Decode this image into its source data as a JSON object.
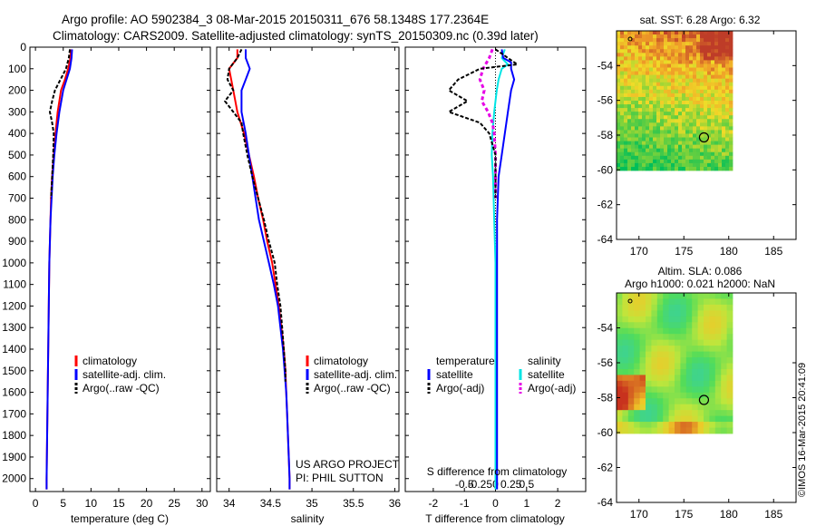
{
  "header": {
    "line1": "Argo profile: AO 5902384_3 08-Mar-2015 20150311_676 58.1348S 177.2364E",
    "line2": "Climatology: CARS2009. Satellite-adjusted climatology: synTS_20150309.nc (0.39d later)"
  },
  "colors": {
    "climatology": "#ff0000",
    "satellite": "#0000ff",
    "argo": "#000000",
    "salinity_satellite": "#00e5e5",
    "salinity_argo": "#e600e6"
  },
  "chart_data": [
    {
      "id": "temperature",
      "type": "line",
      "xlabel": "temperature (deg C)",
      "ylabel": "",
      "xlim": [
        -1,
        31.5
      ],
      "ylim": [
        2060,
        0
      ],
      "xticks": [
        0,
        5,
        10,
        15,
        20,
        25,
        30
      ],
      "yticks": [
        0,
        100,
        200,
        300,
        400,
        500,
        600,
        700,
        800,
        900,
        1000,
        1100,
        1200,
        1300,
        1400,
        1500,
        1600,
        1700,
        1800,
        1900,
        2000
      ],
      "legend": [
        "climatology",
        "satellite-adj. clim.",
        "Argo(..raw -QC)"
      ],
      "series": [
        {
          "name": "climatology",
          "depth": [
            10,
            50,
            100,
            150,
            200,
            300,
            400,
            500,
            600,
            700,
            800,
            1000,
            1200,
            1400,
            1600,
            1800,
            2000,
            2050
          ],
          "values": [
            6.4,
            6.3,
            5.9,
            5.3,
            4.6,
            4.0,
            3.6,
            3.3,
            3.0,
            2.8,
            2.7,
            2.5,
            2.4,
            2.3,
            2.2,
            2.1,
            2.0,
            2.0
          ]
        },
        {
          "name": "satellite-adj. clim.",
          "depth": [
            10,
            50,
            100,
            150,
            200,
            300,
            400,
            500,
            600,
            700,
            800,
            1000,
            1200,
            1400,
            1600,
            1800,
            2000,
            2050
          ],
          "values": [
            6.6,
            6.5,
            6.2,
            5.6,
            5.0,
            4.3,
            3.8,
            3.4,
            3.1,
            2.9,
            2.7,
            2.5,
            2.4,
            2.3,
            2.2,
            2.1,
            2.0,
            2.0
          ]
        },
        {
          "name": "Argo(..raw -QC)",
          "depth": [
            10,
            50,
            100,
            150,
            200,
            250,
            300,
            350,
            400,
            500,
            600,
            700
          ],
          "values": [
            6.2,
            6.0,
            5.5,
            4.5,
            3.5,
            3.0,
            2.6,
            3.0,
            3.3,
            3.2,
            3.0,
            2.8
          ]
        }
      ]
    },
    {
      "id": "salinity",
      "type": "line",
      "xlabel": "salinity",
      "ylabel": "",
      "xlim": [
        33.85,
        36.05
      ],
      "ylim": [
        2060,
        0
      ],
      "xticks": [
        34,
        34.5,
        35,
        35.5,
        36
      ],
      "legend": [
        "climatology",
        "satellite-adj. clim.",
        "Argo(..raw -QC)"
      ],
      "annotation": [
        "US ARGO PROJECT",
        "PI: PHIL SUTTON"
      ],
      "series": [
        {
          "name": "climatology",
          "depth": [
            10,
            50,
            100,
            200,
            300,
            400,
            500,
            600,
            700,
            800,
            900,
            1000,
            1100,
            1200,
            1300,
            1400,
            1500,
            1600,
            1700,
            1800,
            1900,
            2000,
            2050
          ],
          "values": [
            34.1,
            34.1,
            34.0,
            34.05,
            34.1,
            34.18,
            34.24,
            34.3,
            34.35,
            34.41,
            34.46,
            34.52,
            34.56,
            34.6,
            34.63,
            34.66,
            34.68,
            34.69,
            34.7,
            34.71,
            34.72,
            34.73,
            34.73
          ]
        },
        {
          "name": "satellite-adj. clim.",
          "depth": [
            10,
            50,
            100,
            150,
            200,
            300,
            400,
            500,
            600,
            700,
            800,
            900,
            1000,
            1100,
            1200,
            1300,
            1400,
            1500,
            1600,
            1700,
            1800,
            1900,
            2000,
            2050
          ],
          "values": [
            34.2,
            34.2,
            34.25,
            34.2,
            34.15,
            34.15,
            34.2,
            34.24,
            34.28,
            34.32,
            34.36,
            34.42,
            34.48,
            34.54,
            34.59,
            34.62,
            34.65,
            34.67,
            34.69,
            34.7,
            34.71,
            34.72,
            34.73,
            34.73
          ]
        },
        {
          "name": "Argo(..raw -QC)",
          "depth": [
            10,
            50,
            100,
            150,
            200,
            250,
            300,
            350,
            400,
            500,
            600,
            700,
            800,
            900,
            1000,
            1100,
            1200,
            1300,
            1400,
            1500,
            1550
          ],
          "values": [
            34.15,
            34.1,
            34.0,
            33.98,
            34.05,
            33.95,
            34.05,
            34.15,
            34.17,
            34.22,
            34.28,
            34.35,
            34.42,
            34.48,
            34.55,
            34.58,
            34.62,
            34.64,
            34.66,
            34.68,
            34.68
          ]
        }
      ]
    },
    {
      "id": "difference",
      "type": "line",
      "xlabel": "T difference from climatology",
      "xlabel2": "S difference from climatology",
      "ylabel": "",
      "xlim": [
        -2.9,
        2.9
      ],
      "ylim": [
        2060,
        0
      ],
      "xticks": [
        -2,
        -1,
        0,
        1,
        2
      ],
      "xtick_labels": [
        "-2",
        "-1",
        "0",
        "1",
        "2"
      ],
      "sticks": [
        -0.5,
        -0.25,
        0,
        0.25,
        0.5
      ],
      "stick_labels": [
        "-0.5",
        "-0.25",
        "0",
        "0.25",
        "0.5"
      ],
      "legend": {
        "temperature_title": "temperature",
        "salinity_title": "salinity",
        "satellite": "satellite",
        "argo": "Argo(-adj)"
      },
      "series": [
        {
          "name": "temperature satellite",
          "depth": [
            10,
            50,
            70,
            100,
            150,
            200,
            300,
            400,
            500,
            600,
            800,
            1000,
            1200,
            1400,
            1600,
            1800,
            2000,
            2050
          ],
          "values": [
            0.2,
            0.25,
            0.5,
            0.5,
            0.6,
            0.5,
            0.4,
            0.3,
            0.2,
            0.1,
            0.05,
            0.05,
            0.05,
            0.05,
            0.05,
            0.05,
            0.05,
            0.05
          ]
        },
        {
          "name": "temperature Argo(-adj)",
          "depth": [
            10,
            50,
            80,
            100,
            150,
            200,
            250,
            300,
            350,
            400,
            500,
            600,
            700
          ],
          "values": [
            0.0,
            0.4,
            0.7,
            -0.5,
            -1.2,
            -1.5,
            -0.9,
            -1.5,
            -0.5,
            -0.2,
            0.0,
            0.0,
            0.0
          ]
        },
        {
          "name": "salinity satellite",
          "depth": [
            10,
            50,
            80,
            100,
            150,
            200,
            300,
            400,
            500,
            600,
            800,
            1000,
            1200,
            1400,
            1600,
            1800,
            2000,
            2050
          ],
          "values": [
            0.15,
            0.1,
            0.2,
            0.1,
            0.05,
            0.02,
            -0.02,
            -0.05,
            -0.06,
            -0.04,
            -0.02,
            0.0,
            0.0,
            0.0,
            0.0,
            0.0,
            0.0,
            0.0
          ]
        },
        {
          "name": "salinity Argo(-adj)",
          "depth": [
            10,
            50,
            100,
            150,
            200,
            250,
            300,
            350,
            400,
            500,
            600,
            700
          ],
          "values": [
            -0.05,
            -0.1,
            -0.2,
            -0.25,
            -0.18,
            -0.22,
            -0.12,
            -0.05,
            -0.02,
            0.0,
            0.0,
            0.0
          ]
        }
      ]
    },
    {
      "id": "sst_map",
      "type": "heatmap",
      "title": "sat. SST: 6.28 Argo: 6.32",
      "xlim": [
        167.5,
        187.5
      ],
      "ylim": [
        -64,
        -52
      ],
      "xticks": [
        170,
        175,
        180,
        185
      ],
      "yticks": [
        -54,
        -56,
        -58,
        -60,
        -62,
        -64
      ],
      "ytick_labels": [
        "-54",
        "-56",
        "-58",
        "-60",
        "-62",
        "-64"
      ],
      "marker": {
        "lon": 177.24,
        "lat": -58.13
      }
    },
    {
      "id": "sla_map",
      "type": "heatmap",
      "title": "Altim. SLA: 0.086",
      "subtitle": "Argo h1000: 0.021 h2000: NaN",
      "xlim": [
        167.5,
        187.5
      ],
      "ylim": [
        -64,
        -52
      ],
      "xticks": [
        170,
        175,
        180,
        185
      ],
      "yticks": [
        -54,
        -56,
        -58,
        -60,
        -62,
        -64
      ],
      "ytick_labels": [
        "-54",
        "-56",
        "-58",
        "-60",
        "-62",
        "-64"
      ],
      "marker": {
        "lon": 177.24,
        "lat": -58.13
      }
    }
  ],
  "credit": "©IMOS 16-Mar-2015 20:41:09"
}
